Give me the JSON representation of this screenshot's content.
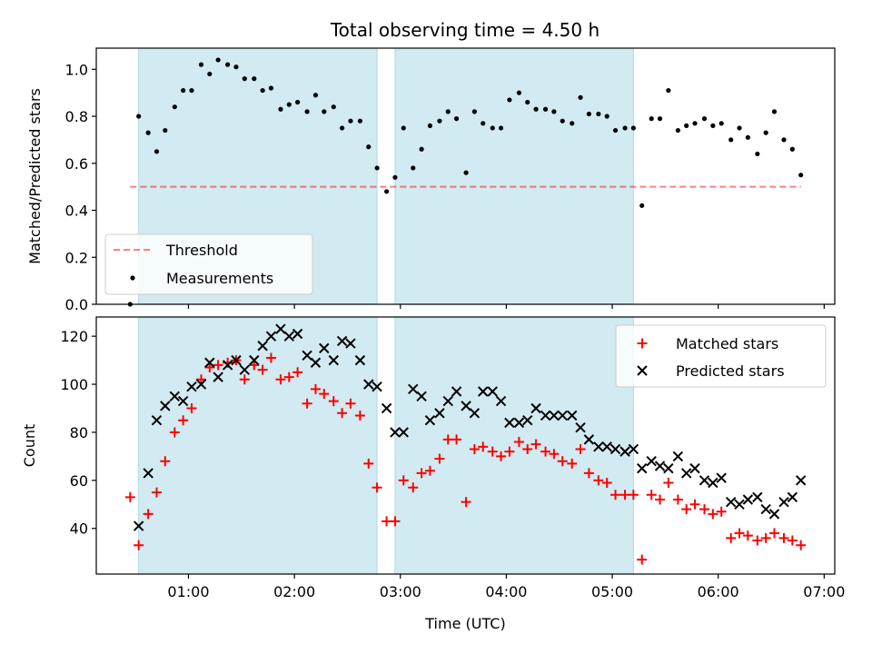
{
  "title": "Total observing time = 4.50 h",
  "colors": {
    "band": "#add8e6",
    "threshold": "#ff0000",
    "measurement": "#000000",
    "matched": "#ff0000",
    "predicted": "#000000"
  },
  "chart_data": [
    {
      "type": "scatter",
      "ylabel": "Matched/Predicted stars",
      "xlim": [
        0.13,
        7.1
      ],
      "ylim": [
        0,
        1.09
      ],
      "yticks": [
        "0.0",
        "0.2",
        "0.4",
        "0.6",
        "0.8",
        "1.0"
      ],
      "ytick_values": [
        0,
        0.2,
        0.4,
        0.6,
        0.8,
        1.0
      ],
      "bands": [
        [
          0.53,
          2.78
        ],
        [
          2.95,
          5.2
        ]
      ],
      "threshold": {
        "name": "Threshold",
        "value": 0.5,
        "x": [
          0.45,
          6.78
        ]
      },
      "series": [
        {
          "name": "Measurements",
          "x": [
            0.45,
            0.53,
            0.62,
            0.7,
            0.78,
            0.87,
            0.95,
            1.03,
            1.12,
            1.2,
            1.28,
            1.37,
            1.45,
            1.53,
            1.62,
            1.7,
            1.78,
            1.87,
            1.95,
            2.03,
            2.12,
            2.2,
            2.28,
            2.37,
            2.45,
            2.53,
            2.62,
            2.7,
            2.78,
            2.87,
            2.95,
            3.03,
            3.12,
            3.2,
            3.28,
            3.37,
            3.45,
            3.53,
            3.62,
            3.7,
            3.78,
            3.87,
            3.95,
            4.03,
            4.12,
            4.2,
            4.28,
            4.37,
            4.45,
            4.53,
            4.62,
            4.7,
            4.78,
            4.87,
            4.95,
            5.03,
            5.12,
            5.2,
            5.28,
            5.37,
            5.45,
            5.53,
            5.62,
            5.7,
            5.78,
            5.87,
            5.95,
            6.03,
            6.12,
            6.2,
            6.28,
            6.37,
            6.45,
            6.53,
            6.62,
            6.7,
            6.78
          ],
          "y": [
            0.0,
            0.8,
            0.73,
            0.65,
            0.74,
            0.84,
            0.91,
            0.91,
            1.02,
            0.98,
            1.04,
            1.02,
            1.01,
            0.96,
            0.96,
            0.91,
            0.92,
            0.83,
            0.85,
            0.86,
            0.82,
            0.89,
            0.82,
            0.84,
            0.75,
            0.78,
            0.78,
            0.67,
            0.58,
            0.48,
            0.54,
            0.75,
            0.58,
            0.66,
            0.76,
            0.78,
            0.82,
            0.79,
            0.56,
            0.82,
            0.77,
            0.75,
            0.75,
            0.87,
            0.9,
            0.86,
            0.83,
            0.83,
            0.82,
            0.78,
            0.77,
            0.88,
            0.81,
            0.81,
            0.8,
            0.74,
            0.75,
            0.75,
            0.42,
            0.79,
            0.79,
            0.91,
            0.74,
            0.76,
            0.77,
            0.79,
            0.76,
            0.77,
            0.7,
            0.75,
            0.71,
            0.64,
            0.73,
            0.82,
            0.7,
            0.66,
            0.55
          ]
        }
      ],
      "legend": [
        "Threshold",
        "Measurements"
      ],
      "legend_loc": "lower-left"
    },
    {
      "type": "scatter",
      "xlabel": "Time (UTC)",
      "ylabel": "Count",
      "xlim": [
        0.13,
        7.1
      ],
      "ylim": [
        21,
        128
      ],
      "xticks": [
        "01:00",
        "02:00",
        "03:00",
        "04:00",
        "05:00",
        "06:00",
        "07:00"
      ],
      "xtick_values": [
        1,
        2,
        3,
        4,
        5,
        6,
        7
      ],
      "yticks": [
        "40",
        "60",
        "80",
        "100",
        "120"
      ],
      "ytick_values": [
        40,
        60,
        80,
        100,
        120
      ],
      "bands": [
        [
          0.53,
          2.78
        ],
        [
          2.95,
          5.2
        ]
      ],
      "series": [
        {
          "name": "Matched stars",
          "marker": "plus",
          "x": [
            0.45,
            0.53,
            0.62,
            0.7,
            0.78,
            0.87,
            0.95,
            1.03,
            1.12,
            1.2,
            1.28,
            1.37,
            1.45,
            1.53,
            1.62,
            1.7,
            1.78,
            1.87,
            1.95,
            2.03,
            2.12,
            2.2,
            2.28,
            2.37,
            2.45,
            2.53,
            2.62,
            2.7,
            2.78,
            2.87,
            2.95,
            3.03,
            3.12,
            3.2,
            3.28,
            3.37,
            3.45,
            3.53,
            3.62,
            3.7,
            3.78,
            3.87,
            3.95,
            4.03,
            4.12,
            4.2,
            4.28,
            4.37,
            4.45,
            4.53,
            4.62,
            4.7,
            4.78,
            4.87,
            4.95,
            5.03,
            5.12,
            5.2,
            5.28,
            5.37,
            5.45,
            5.53,
            5.62,
            5.7,
            5.78,
            5.87,
            5.95,
            6.03,
            6.12,
            6.2,
            6.28,
            6.37,
            6.45,
            6.53,
            6.62,
            6.7,
            6.78
          ],
          "y": [
            53,
            33,
            46,
            55,
            68,
            80,
            85,
            90,
            102,
            107,
            108,
            109,
            110,
            102,
            108,
            106,
            111,
            102,
            103,
            105,
            92,
            98,
            96,
            93,
            88,
            92,
            87,
            67,
            57,
            43,
            43,
            60,
            57,
            63,
            64,
            69,
            77,
            77,
            51,
            73,
            74,
            72,
            70,
            72,
            76,
            73,
            75,
            72,
            71,
            68,
            67,
            73,
            63,
            60,
            59,
            54,
            54,
            54,
            27,
            54,
            52,
            59,
            52,
            48,
            50,
            48,
            46,
            47,
            36,
            38,
            37,
            35,
            36,
            38,
            36,
            35,
            33
          ]
        },
        {
          "name": "Predicted stars",
          "marker": "x",
          "x": [
            0.53,
            0.62,
            0.7,
            0.78,
            0.87,
            0.95,
            1.03,
            1.12,
            1.2,
            1.28,
            1.37,
            1.45,
            1.53,
            1.62,
            1.7,
            1.78,
            1.87,
            1.95,
            2.03,
            2.12,
            2.2,
            2.28,
            2.37,
            2.45,
            2.53,
            2.62,
            2.7,
            2.78,
            2.87,
            2.95,
            3.03,
            3.12,
            3.2,
            3.28,
            3.37,
            3.45,
            3.53,
            3.62,
            3.7,
            3.78,
            3.87,
            3.95,
            4.03,
            4.12,
            4.2,
            4.28,
            4.37,
            4.45,
            4.53,
            4.62,
            4.7,
            4.78,
            4.87,
            4.95,
            5.03,
            5.12,
            5.2,
            5.28,
            5.37,
            5.45,
            5.53,
            5.62,
            5.7,
            5.78,
            5.87,
            5.95,
            6.03,
            6.12,
            6.2,
            6.28,
            6.37,
            6.45,
            6.53,
            6.62,
            6.7,
            6.78
          ],
          "y": [
            41,
            63,
            85,
            91,
            95,
            93,
            99,
            100,
            109,
            103,
            108,
            110,
            106,
            110,
            116,
            120,
            123,
            120,
            121,
            112,
            109,
            115,
            110,
            118,
            117,
            110,
            100,
            99,
            90,
            80,
            80,
            98,
            95,
            85,
            88,
            93,
            97,
            91,
            88,
            97,
            97,
            93,
            84,
            84,
            85,
            90,
            87,
            87,
            87,
            87,
            82,
            77,
            74,
            74,
            73,
            72,
            73,
            65,
            68,
            66,
            65,
            70,
            63,
            65,
            60,
            59,
            61,
            51,
            50,
            52,
            53,
            48,
            46,
            51,
            53,
            60
          ]
        }
      ],
      "legend": [
        "Matched stars",
        "Predicted stars"
      ],
      "legend_loc": "upper-right"
    }
  ]
}
